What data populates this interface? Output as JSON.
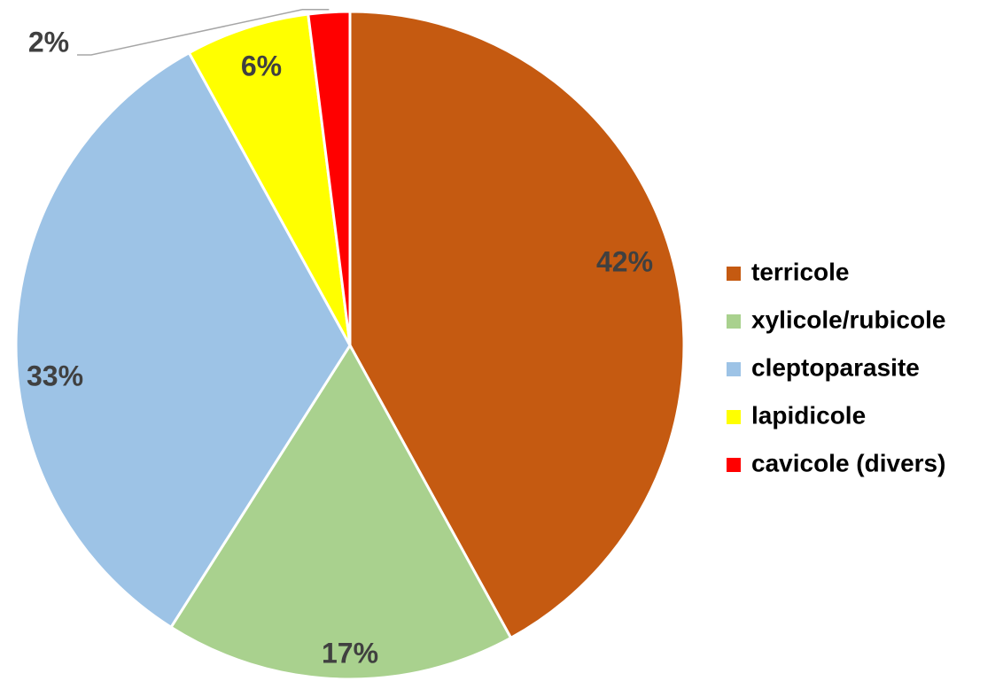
{
  "chart_data": {
    "type": "pie",
    "categories": [
      "terricole",
      "xylicole/rubicole",
      "cleptoparasite",
      "lapidicole",
      "cavicole (divers)"
    ],
    "values": [
      42,
      17,
      33,
      6,
      2
    ],
    "value_labels": [
      "42%",
      "17%",
      "33%",
      "6%",
      "2%"
    ],
    "colors": [
      "#c55a11",
      "#a9d18e",
      "#9dc3e6",
      "#ffff00",
      "#ff0000"
    ],
    "legend": "right"
  }
}
